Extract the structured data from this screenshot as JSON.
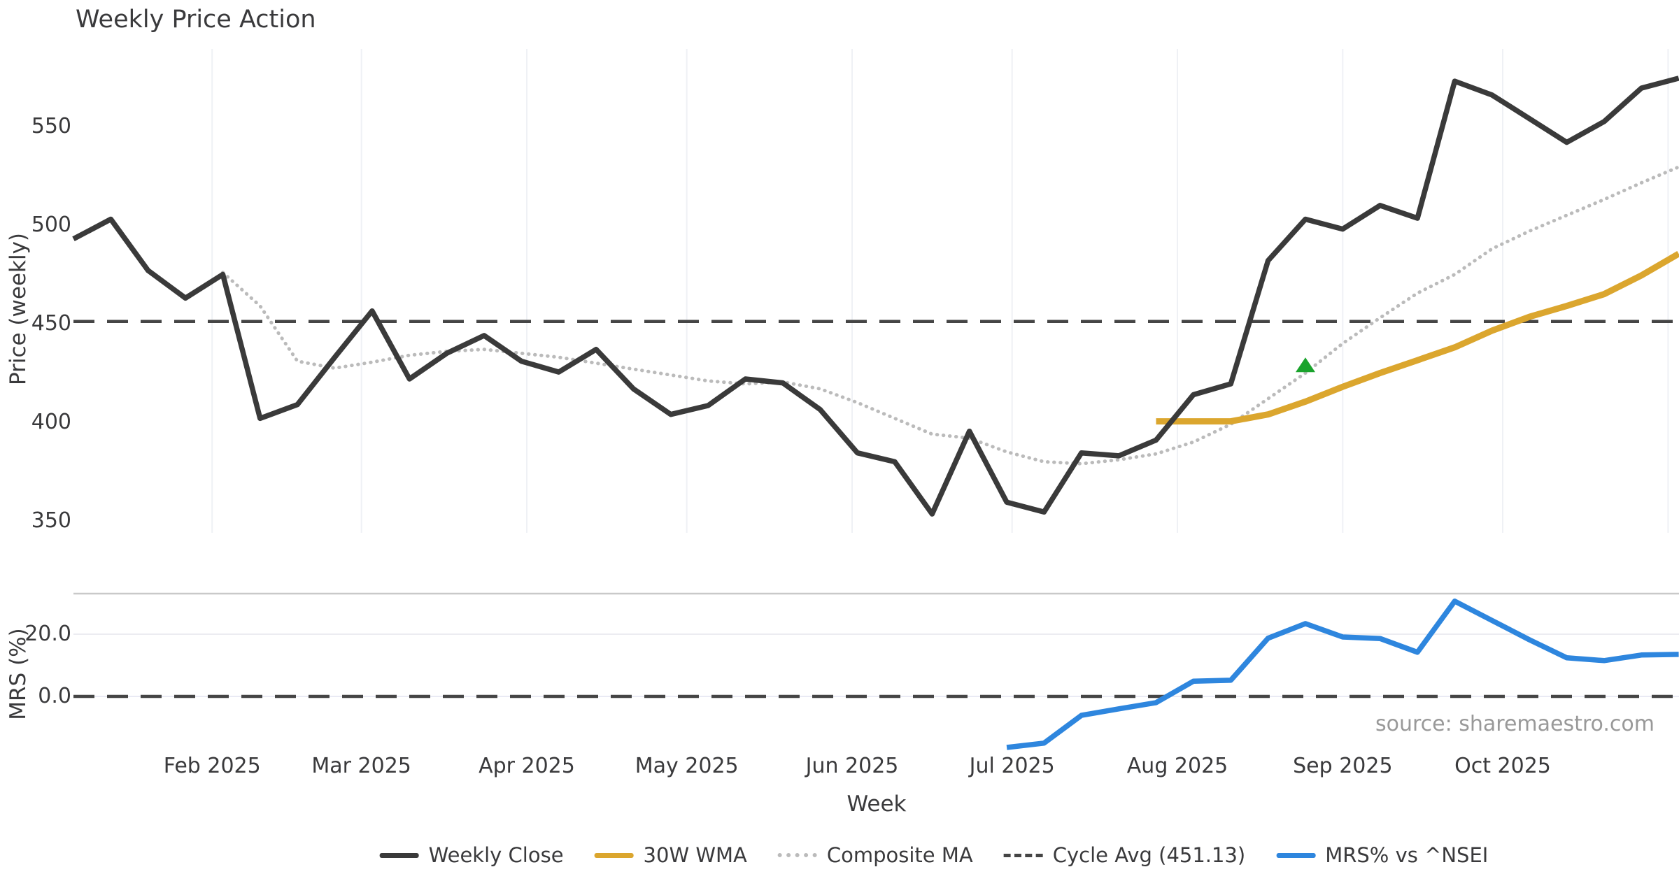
{
  "title": "Weekly Price Action",
  "source": "source: sharemaestro.com",
  "axes": {
    "price_label": "Price (weekly)",
    "mrs_label": "MRS (%)",
    "week_label": "Week",
    "price_ticks": [
      550,
      500,
      450,
      400,
      350
    ],
    "mrs_ticks": [
      {
        "label": "20.0",
        "value": 20.0
      },
      {
        "label": "0.0",
        "value": 0.0
      }
    ],
    "month_ticks": [
      {
        "label": "Feb 2025",
        "date": "2025-02-01"
      },
      {
        "label": "Mar 2025",
        "date": "2025-03-01"
      },
      {
        "label": "Apr 2025",
        "date": "2025-04-01"
      },
      {
        "label": "May 2025",
        "date": "2025-05-01"
      },
      {
        "label": "Jun 2025",
        "date": "2025-06-01"
      },
      {
        "label": "Jul 2025",
        "date": "2025-07-01"
      },
      {
        "label": "Aug 2025",
        "date": "2025-08-01"
      },
      {
        "label": "Sep 2025",
        "date": "2025-09-01"
      },
      {
        "label": "Oct 2025",
        "date": "2025-10-01"
      },
      {
        "label": "",
        "date": "2025-11-01"
      }
    ]
  },
  "colors": {
    "close": "#3A3A3A",
    "wma": "#DBA62E",
    "composite": "#BBBBBB",
    "cycle": "#454545",
    "mrs": "#2E86DE",
    "signal": "#1AA32C",
    "grid": "#EFF1F5",
    "hgrid20": "#ECECF1",
    "hgrid0": "#E9EAF4",
    "separator": "#C9C9C9",
    "text": "#3A3A3C",
    "muted": "#999999"
  },
  "legend": {
    "items": [
      {
        "label": "Weekly Close",
        "style": "solid",
        "color": "#3A3A3A"
      },
      {
        "label": "30W WMA",
        "style": "solid",
        "color": "#DBA62E"
      },
      {
        "label": "Composite MA",
        "style": "dotted",
        "color": "#BBBBBB"
      },
      {
        "label": "Cycle Avg (451.13)",
        "style": "dashed",
        "color": "#454545"
      },
      {
        "label": "MRS% vs ^NSEI",
        "style": "solid",
        "color": "#2E86DE"
      }
    ]
  },
  "chart_data": [
    {
      "type": "line",
      "panel": "price",
      "title": "Weekly Price Action",
      "xlabel": "Week",
      "ylabel": "Price (weekly)",
      "ylim": [
        344,
        590
      ],
      "xtick_labels": [
        "Feb 2025",
        "Mar 2025",
        "Apr 2025",
        "May 2025",
        "Jun 2025",
        "Jul 2025",
        "Aug 2025",
        "Sep 2025",
        "Oct 2025"
      ],
      "grid": "vertical-months",
      "legend_position": "bottom-center",
      "x": [
        "2025-01-06",
        "2025-01-13",
        "2025-01-20",
        "2025-01-27",
        "2025-02-03",
        "2025-02-10",
        "2025-02-17",
        "2025-02-24",
        "2025-03-03",
        "2025-03-10",
        "2025-03-17",
        "2025-03-24",
        "2025-03-31",
        "2025-04-07",
        "2025-04-14",
        "2025-04-21",
        "2025-04-28",
        "2025-05-05",
        "2025-05-12",
        "2025-05-19",
        "2025-05-26",
        "2025-06-02",
        "2025-06-09",
        "2025-06-16",
        "2025-06-23",
        "2025-06-30",
        "2025-07-07",
        "2025-07-14",
        "2025-07-21",
        "2025-07-28",
        "2025-08-04",
        "2025-08-11",
        "2025-08-18",
        "2025-08-25",
        "2025-09-01",
        "2025-09-08",
        "2025-09-15",
        "2025-09-22",
        "2025-09-29",
        "2025-10-06",
        "2025-10-13",
        "2025-10-20",
        "2025-10-27",
        "2025-11-03"
      ],
      "series": [
        {
          "name": "Cycle Avg (451.13)",
          "style": "dashed",
          "color": "#454545",
          "value": 451.13
        },
        {
          "name": "Composite MA",
          "style": "dotted",
          "color": "#BBBBBB",
          "values": [
            null,
            null,
            null,
            null,
            476,
            459,
            431,
            427.5,
            430.5,
            434,
            436,
            437,
            435,
            433,
            430,
            427,
            424,
            421,
            419.5,
            420.5,
            417,
            410,
            402,
            394,
            392,
            385,
            380,
            379,
            381,
            384,
            390,
            399,
            412,
            425,
            440,
            453,
            465.5,
            475,
            488,
            497,
            505,
            513,
            521.5,
            529.5
          ]
        },
        {
          "name": "30W WMA",
          "style": "solid",
          "color": "#DBA62E",
          "values": [
            null,
            null,
            null,
            null,
            null,
            null,
            null,
            null,
            null,
            null,
            null,
            null,
            null,
            null,
            null,
            null,
            null,
            null,
            null,
            null,
            null,
            null,
            null,
            null,
            null,
            null,
            null,
            null,
            null,
            400.5,
            400.5,
            400.5,
            404,
            410.5,
            418,
            425,
            431.5,
            438,
            446.5,
            453.5,
            459,
            465,
            474.5,
            485.5
          ]
        },
        {
          "name": "Weekly Close",
          "style": "solid",
          "color": "#3A3A3A",
          "values": [
            493,
            503,
            477,
            463,
            475,
            402,
            409,
            433,
            456.5,
            422,
            435,
            444,
            431,
            425.5,
            437,
            417,
            404,
            408.5,
            422,
            420,
            406.5,
            384.5,
            380,
            353.5,
            395.5,
            359.5,
            354.5,
            384.5,
            383,
            391,
            414,
            419.5,
            482,
            503,
            498,
            510,
            503.5,
            573,
            566,
            554,
            542,
            552.5,
            569.5,
            574.5
          ]
        }
      ],
      "marker": {
        "shape": "triangle-up",
        "color": "#1AA32C",
        "date": "2025-08-25",
        "price": 429
      }
    },
    {
      "type": "line",
      "panel": "mrs",
      "ylabel": "MRS (%)",
      "ylim": [
        -18,
        33
      ],
      "zero_line": 0.0,
      "x": [
        "2025-01-06",
        "2025-01-13",
        "2025-01-20",
        "2025-01-27",
        "2025-02-03",
        "2025-02-10",
        "2025-02-17",
        "2025-02-24",
        "2025-03-03",
        "2025-03-10",
        "2025-03-17",
        "2025-03-24",
        "2025-03-31",
        "2025-04-07",
        "2025-04-14",
        "2025-04-21",
        "2025-04-28",
        "2025-05-05",
        "2025-05-12",
        "2025-05-19",
        "2025-05-26",
        "2025-06-02",
        "2025-06-09",
        "2025-06-16",
        "2025-06-23",
        "2025-06-30",
        "2025-07-07",
        "2025-07-14",
        "2025-07-21",
        "2025-07-28",
        "2025-08-04",
        "2025-08-11",
        "2025-08-18",
        "2025-08-25",
        "2025-09-01",
        "2025-09-08",
        "2025-09-15",
        "2025-09-22",
        "2025-09-29",
        "2025-10-06",
        "2025-10-13",
        "2025-10-20",
        "2025-10-27",
        "2025-11-03"
      ],
      "series": [
        {
          "name": "MRS% vs ^NSEI",
          "style": "solid",
          "color": "#2E86DE",
          "values": [
            null,
            null,
            null,
            null,
            null,
            null,
            null,
            null,
            null,
            null,
            null,
            null,
            null,
            null,
            null,
            null,
            null,
            null,
            null,
            null,
            null,
            null,
            null,
            null,
            null,
            -16.4,
            -15,
            -6.1,
            -4,
            -2,
            4.9,
            5.2,
            18.7,
            23.4,
            19.1,
            18.6,
            14.2,
            30.6,
            24.4,
            18.2,
            12.4,
            11.5,
            13.3,
            13.5
          ]
        }
      ]
    }
  ]
}
